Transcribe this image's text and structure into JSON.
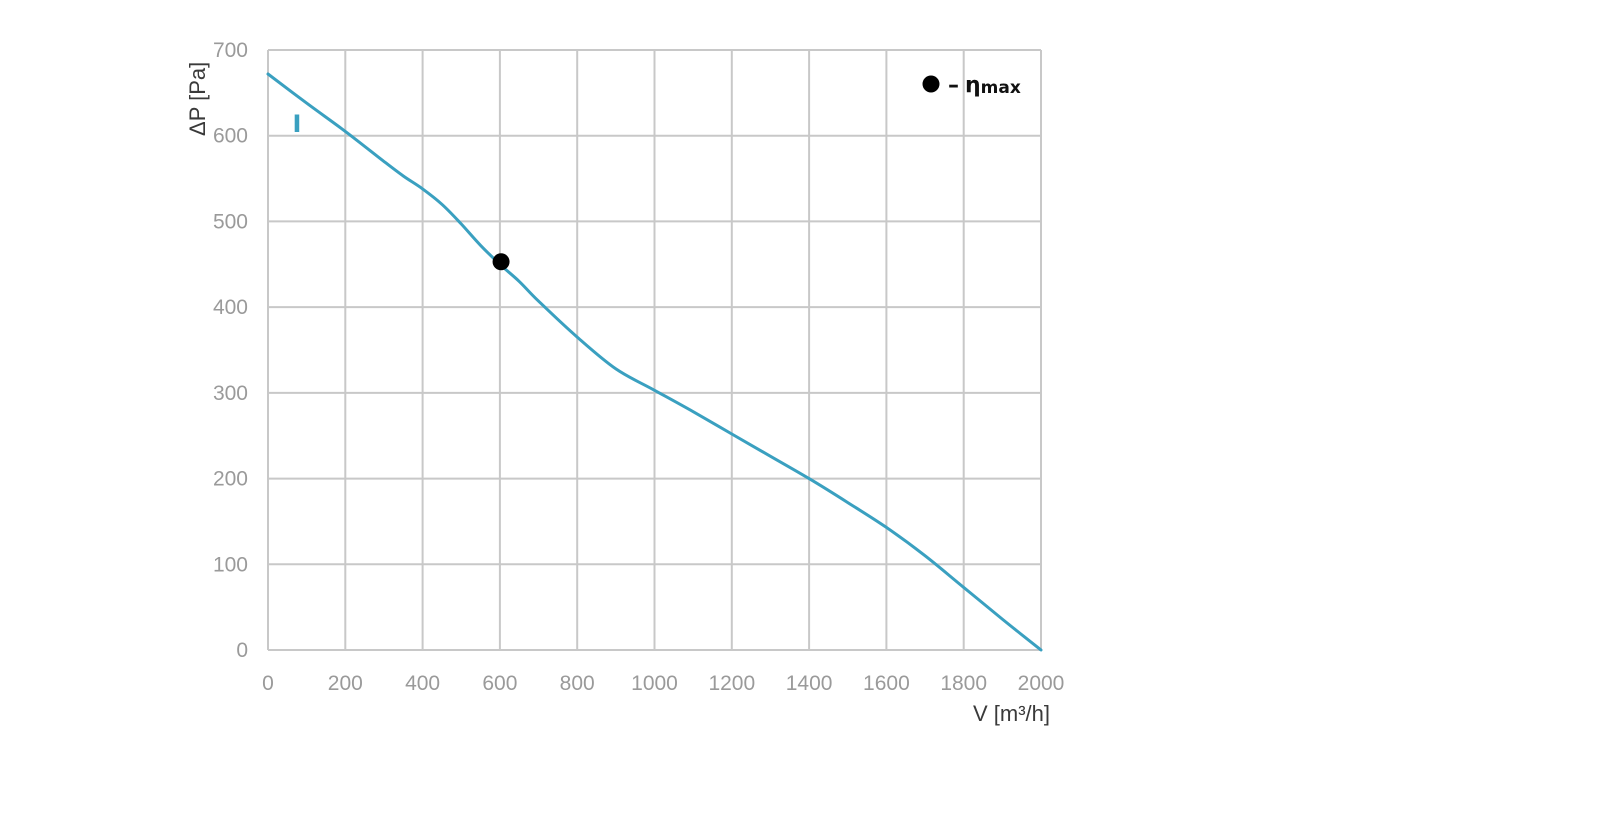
{
  "chart_data": {
    "type": "line",
    "xlabel": "V [m³/h]",
    "ylabel": "ΔP [Pa]",
    "xlim": [
      0,
      2000
    ],
    "ylim": [
      0,
      700
    ],
    "x_ticks": [
      "0",
      "200",
      "400",
      "600",
      "800",
      "1000",
      "1200",
      "1400",
      "1600",
      "1800",
      "2000"
    ],
    "y_ticks": [
      "0",
      "100",
      "200",
      "300",
      "400",
      "500",
      "600",
      "700"
    ],
    "grid": true,
    "legend": {
      "marker": "●",
      "dash": "–",
      "symbol": "η",
      "subscript": "max",
      "placement": "top-right"
    },
    "series": [
      {
        "label": "I",
        "color": "#3aa0c0",
        "x": [
          0,
          100,
          200,
          300,
          350,
          400,
          450,
          500,
          550,
          600,
          650,
          700,
          800,
          900,
          1000,
          1100,
          1200,
          1300,
          1400,
          1500,
          1600,
          1700,
          1800,
          1900,
          2000
        ],
        "y": [
          672,
          638,
          605,
          570,
          553,
          538,
          520,
          497,
          472,
          450,
          430,
          407,
          365,
          328,
          303,
          278,
          252,
          226,
          200,
          172,
          143,
          110,
          73,
          36,
          0
        ]
      }
    ],
    "points": [
      {
        "name": "ηmax",
        "x": 603,
        "y": 453,
        "color": "#000000"
      }
    ]
  }
}
